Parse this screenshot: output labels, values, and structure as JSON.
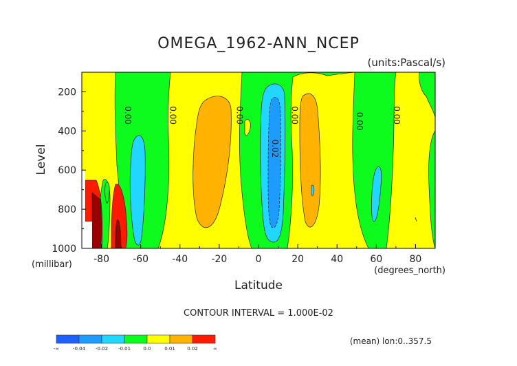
{
  "chart_data": {
    "type": "heatmap",
    "title": "OMEGA_1962-ANN_NCEP",
    "units": "(units:Pascal/s)",
    "xlabel": "Latitude",
    "ylabel": "Level",
    "x_unit_label": "(degrees_north)",
    "y_unit_label": "(millibar)",
    "xlim": [
      -90,
      90
    ],
    "ylim": [
      1000,
      100
    ],
    "x_ticks": [
      -80,
      -60,
      -40,
      -20,
      0,
      20,
      40,
      60,
      80
    ],
    "x_tick_labels": [
      "-80",
      "-60",
      "-40",
      "-20",
      "0",
      "20",
      "40",
      "60",
      "80"
    ],
    "y_ticks": [
      200,
      400,
      600,
      800,
      1000
    ],
    "y_tick_labels": [
      "200",
      "400",
      "600",
      "800",
      "1000"
    ],
    "contour_interval": "CONTOUR INTERVAL = 1.000E-02",
    "footnote": "(mean) lon:0..357.5",
    "contour_labels": [
      {
        "text": "0.00",
        "lat": -68,
        "level": 320
      },
      {
        "text": "0.00",
        "lat": -45,
        "level": 320
      },
      {
        "text": "0.00",
        "lat": -11,
        "level": 320
      },
      {
        "text": "0.00",
        "lat": 17,
        "level": 320
      },
      {
        "text": "0.00",
        "lat": 50,
        "level": 350
      },
      {
        "text": "0.00",
        "lat": 69,
        "level": 320
      },
      {
        "text": "0.02",
        "lat": 7,
        "level": 490
      }
    ],
    "bands": [
      {
        "lat": [
          -90,
          -88
        ],
        "value": "0.00 to 0.01"
      },
      {
        "lat": [
          -88,
          -70
        ],
        "value": "0.00 to 0.01"
      },
      {
        "lat": [
          -70,
          -48
        ],
        "value": "-0.01 to 0.00"
      },
      {
        "lat": [
          -48,
          -12
        ],
        "value": "0.00 to 0.01"
      },
      {
        "lat": [
          -12,
          16
        ],
        "value": "-0.01 to 0.00"
      },
      {
        "lat": [
          16,
          47
        ],
        "value": "0.00 to 0.01"
      },
      {
        "lat": [
          47,
          70
        ],
        "value": "-0.01 to 0.00"
      },
      {
        "lat": [
          70,
          90
        ],
        "value": "0.00 to 0.01"
      }
    ],
    "legend": {
      "colors": [
        "#1c61ff",
        "#1e9bff",
        "#21d6ff",
        "#0dfc1e",
        "#ffff00",
        "#ffb300",
        "#ff1a00"
      ],
      "labels": [
        "-∞",
        "-0.04",
        "-0.02",
        "-0.01",
        "0.0",
        "0.01",
        "0.02",
        "∞"
      ]
    }
  }
}
